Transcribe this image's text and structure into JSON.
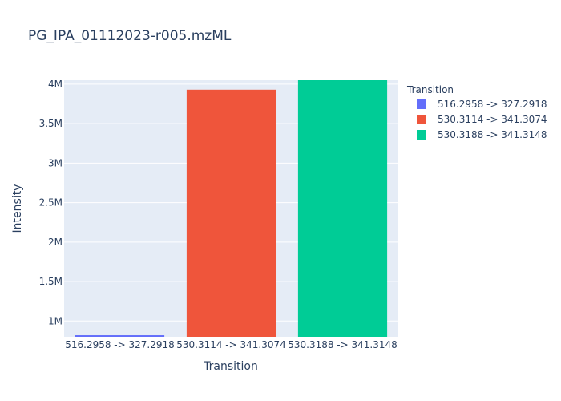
{
  "chart_data": {
    "type": "bar",
    "title": "PG_IPA_01112023-r005.mzML",
    "xlabel": "Transition",
    "ylabel": "Intensity",
    "categories": [
      "516.2958 -> 327.2918",
      "530.3114 -> 341.3074",
      "530.3188 -> 341.3148"
    ],
    "values": [
      820000,
      3930000,
      4050000
    ],
    "colors": [
      "#636efa",
      "#ef553b",
      "#00cc96"
    ],
    "ylim": [
      800000,
      4050000
    ],
    "yticks": [
      1000000,
      1500000,
      2000000,
      2500000,
      3000000,
      3500000,
      4000000
    ],
    "ytick_labels": [
      "1M",
      "1.5M",
      "2M",
      "2.5M",
      "3M",
      "3.5M",
      "4M"
    ],
    "grid": true,
    "legend": {
      "title": "Transition",
      "position": "right",
      "entries": [
        "516.2958 -> 327.2918",
        "530.3114 -> 341.3074",
        "530.3188 -> 341.3148"
      ]
    }
  }
}
